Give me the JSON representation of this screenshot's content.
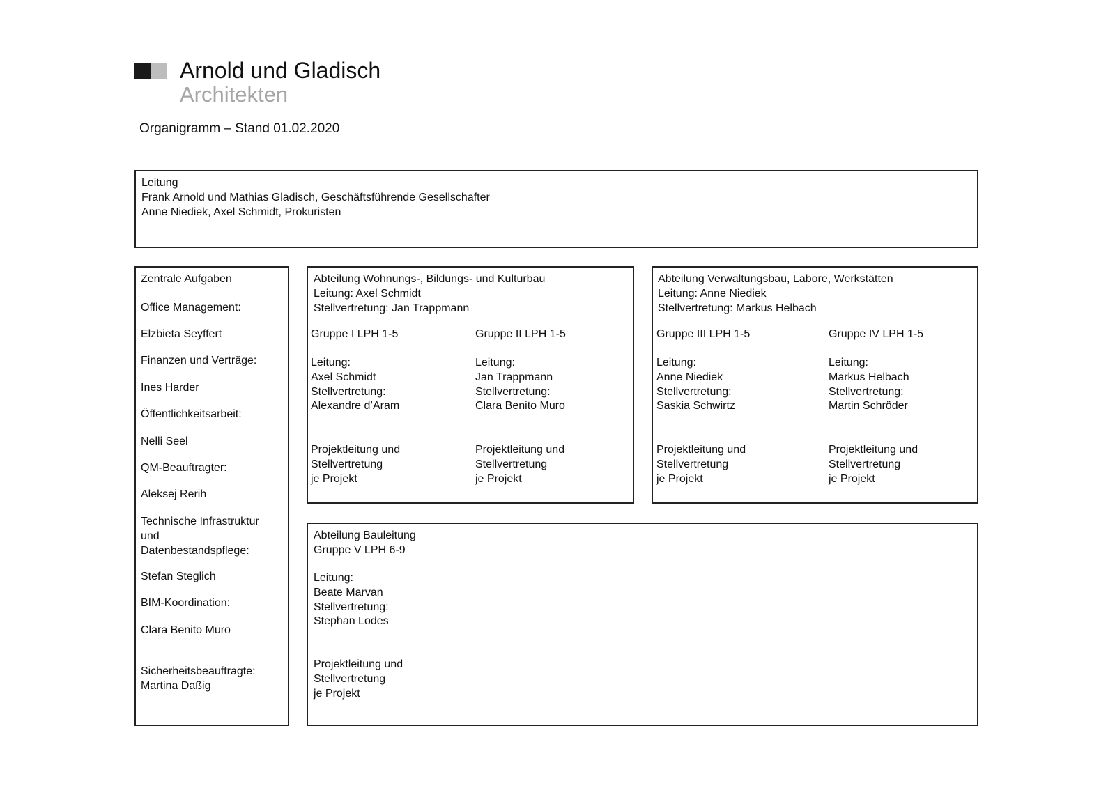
{
  "header": {
    "logo_colors": [
      "#1a1a1a",
      "#bdbdbd"
    ],
    "company": "Arnold und Gladisch",
    "subtitle": "Architekten",
    "stand": "Organigramm – Stand 01.02.2020"
  },
  "leitung": {
    "title": "Leitung",
    "lines": [
      "Frank Arnold und Mathias Gladisch, Geschäftsführende Gesellschafter",
      "Anne Niediek, Axel Schmidt, Prokuristen"
    ]
  },
  "zentrale": {
    "title": "Zentrale Aufgaben",
    "items": [
      {
        "role": "Office Management:",
        "name": "Elzbieta Seyffert"
      },
      {
        "role": "Finanzen und Verträge:",
        "name": "Ines Harder"
      },
      {
        "role": "Öffentlichkeitsarbeit:",
        "name": "Nelli Seel"
      },
      {
        "role": "QM-Beauftragter:",
        "name": "Aleksej Rerih"
      },
      {
        "role": "Technische Infrastruktur\nund\nDatenbestandspflege:",
        "name": "Stefan Steglich"
      },
      {
        "role": "BIM-Koordination:",
        "name": "Clara Benito Muro"
      },
      {
        "role": "Sicherheitsbeauftragte:",
        "name": "Martina Daßig"
      }
    ]
  },
  "abteilungen": [
    {
      "title": "Abteilung Wohnungs-, Bildungs- und Kulturbau",
      "leitung": "Leitung: Axel Schmidt",
      "vertretung": "Stellvertretung: Jan Trappmann",
      "gruppen": [
        {
          "name": "Gruppe I LPH 1-5",
          "leitung_label": "Leitung:",
          "leitung": "Axel Schmidt",
          "vertretung_label": "Stellvertretung:",
          "vertretung": "Alexandre d’Aram",
          "projekt": "Projektleitung und\nStellvertretung\nje Projekt"
        },
        {
          "name": "Gruppe II LPH 1-5",
          "leitung_label": "Leitung:",
          "leitung": "Jan Trappmann",
          "vertretung_label": "Stellvertretung:",
          "vertretung": "Clara Benito Muro",
          "projekt": "Projektleitung und\nStellvertretung\nje Projekt"
        }
      ]
    },
    {
      "title": "Abteilung Verwaltungsbau, Labore, Werkstätten",
      "leitung": "Leitung: Anne Niediek",
      "vertretung": "Stellvertretung: Markus Helbach",
      "gruppen": [
        {
          "name": "Gruppe III LPH 1-5",
          "leitung_label": "Leitung:",
          "leitung": "Anne Niediek",
          "vertretung_label": "Stellvertretung:",
          "vertretung": "Saskia Schwirtz",
          "projekt": "Projektleitung und\nStellvertretung\nje Projekt"
        },
        {
          "name": "Gruppe IV LPH 1-5",
          "leitung_label": "Leitung:",
          "leitung": "Markus Helbach",
          "vertretung_label": "Stellvertretung:",
          "vertretung": "Martin Schröder",
          "projekt": "Projektleitung und\nStellvertretung\nje Projekt"
        }
      ]
    }
  ],
  "bauleitung": {
    "title": "Abteilung Bauleitung",
    "gruppe": "Gruppe V LPH 6-9",
    "leitung_label": "Leitung:",
    "leitung": "Beate Marvan",
    "vertretung_label": "Stellvertretung:",
    "vertretung": "Stephan Lodes",
    "projekt": "Projektleitung und\nStellvertretung\nje Projekt"
  }
}
